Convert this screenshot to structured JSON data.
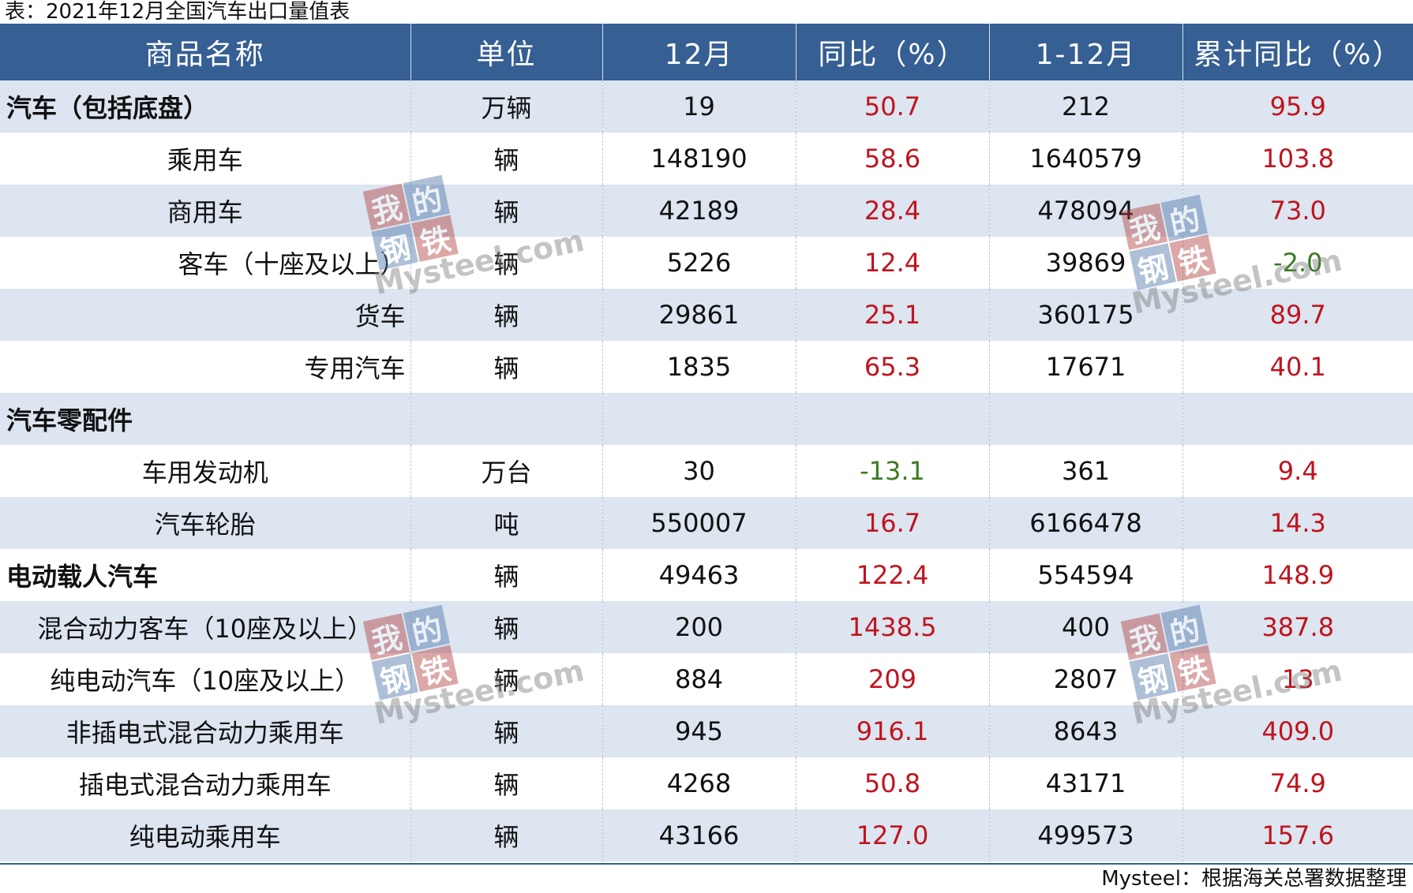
{
  "caption": "表：2021年12月全国汽车出口量值表",
  "headers": [
    "商品名称",
    "单位",
    "12月",
    "同比（%）",
    "1-12月",
    "累计同比（%）"
  ],
  "rows": [
    {
      "name": "汽车（包括底盘）",
      "unit": "万辆",
      "month": "19",
      "yoy": "50.7",
      "ytd": "212",
      "ytd_yoy": "95.9"
    },
    {
      "name": "乘用车",
      "unit": "辆",
      "month": "148190",
      "yoy": "58.6",
      "ytd": "1640579",
      "ytd_yoy": "103.8"
    },
    {
      "name": "商用车",
      "unit": "辆",
      "month": "42189",
      "yoy": "28.4",
      "ytd": "478094",
      "ytd_yoy": "73.0"
    },
    {
      "name": "客车（十座及以上）",
      "unit": "辆",
      "month": "5226",
      "yoy": "12.4",
      "ytd": "39869",
      "ytd_yoy": "-2.0"
    },
    {
      "name": "货车",
      "unit": "辆",
      "month": "29861",
      "yoy": "25.1",
      "ytd": "360175",
      "ytd_yoy": "89.7"
    },
    {
      "name": "专用汽车",
      "unit": "辆",
      "month": "1835",
      "yoy": "65.3",
      "ytd": "17671",
      "ytd_yoy": "40.1"
    },
    {
      "name": "汽车零配件",
      "unit": "",
      "month": "",
      "yoy": "",
      "ytd": "",
      "ytd_yoy": ""
    },
    {
      "name": "车用发动机",
      "unit": "万台",
      "month": "30",
      "yoy": "-13.1",
      "ytd": "361",
      "ytd_yoy": "9.4"
    },
    {
      "name": "汽车轮胎",
      "unit": "吨",
      "month": "550007",
      "yoy": "16.7",
      "ytd": "6166478",
      "ytd_yoy": "14.3"
    },
    {
      "name": "电动载人汽车",
      "unit": "辆",
      "month": "49463",
      "yoy": "122.4",
      "ytd": "554594",
      "ytd_yoy": "148.9"
    },
    {
      "name": "混合动力客车（10座及以上）",
      "unit": "辆",
      "month": "200",
      "yoy": "1438.5",
      "ytd": "400",
      "ytd_yoy": "387.8"
    },
    {
      "name": "纯电动汽车（10座及以上）",
      "unit": "辆",
      "month": "884",
      "yoy": "209",
      "ytd": "2807",
      "ytd_yoy": "13"
    },
    {
      "name": "非插电式混合动力乘用车",
      "unit": "辆",
      "month": "945",
      "yoy": "916.1",
      "ytd": "8643",
      "ytd_yoy": "409.0"
    },
    {
      "name": "插电式混合动力乘用车",
      "unit": "辆",
      "month": "4268",
      "yoy": "50.8",
      "ytd": "43171",
      "ytd_yoy": "74.9"
    },
    {
      "name": "纯电动乘用车",
      "unit": "辆",
      "month": "43166",
      "yoy": "127.0",
      "ytd": "499573",
      "ytd_yoy": "157.6"
    }
  ],
  "source": "Mysteel：根据海关总署数据整理",
  "watermark": {
    "chars": [
      "我",
      "的",
      "钢",
      "铁"
    ],
    "text": "Mysteel.com"
  },
  "colors": {
    "header_bg": "#365f93",
    "stripe": "#dce5f0",
    "positive": "#c0141e",
    "negative": "#3d7a22"
  }
}
